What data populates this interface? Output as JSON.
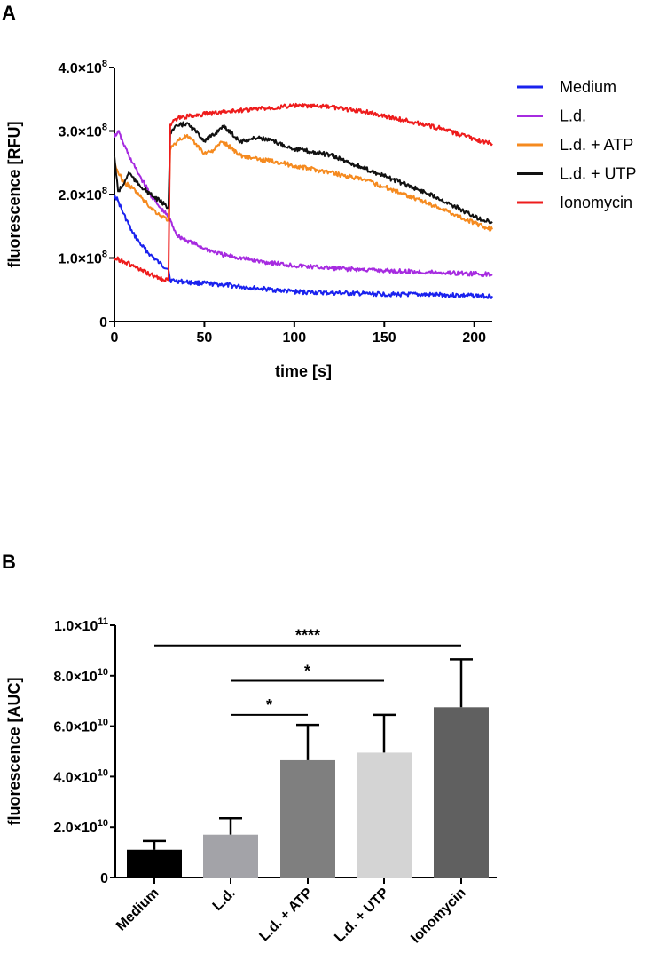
{
  "panels": {
    "a_label": "A",
    "b_label": "B"
  },
  "chart_data": [
    {
      "type": "line",
      "panel": "A",
      "title": "",
      "xlabel": "time [s]",
      "ylabel": "fluorescence [RFU]",
      "xlim": [
        0,
        210
      ],
      "ylim": [
        0,
        400000000
      ],
      "x_ticks": [
        {
          "value": 0,
          "label": "0"
        },
        {
          "value": 50,
          "label": "50"
        },
        {
          "value": 100,
          "label": "100"
        },
        {
          "value": 150,
          "label": "150"
        },
        {
          "value": 200,
          "label": "200"
        }
      ],
      "y_ticks": [
        {
          "value": 0,
          "base": "0",
          "exp": ""
        },
        {
          "value": 100000000,
          "base": "1.0×10",
          "exp": "8"
        },
        {
          "value": 200000000,
          "base": "2.0×10",
          "exp": "8"
        },
        {
          "value": 300000000,
          "base": "3.0×10",
          "exp": "8"
        },
        {
          "value": 400000000,
          "base": "4.0×10",
          "exp": "8"
        }
      ],
      "legend_position": "right",
      "series": [
        {
          "name": "Medium",
          "color": "#1a22ee",
          "points": [
            [
              0,
              200000000
            ],
            [
              2,
              190000000
            ],
            [
              5,
              170000000
            ],
            [
              10,
              140000000
            ],
            [
              15,
              120000000
            ],
            [
              20,
              105000000
            ],
            [
              25,
              92000000
            ],
            [
              30,
              82000000
            ],
            [
              31,
              65000000
            ],
            [
              40,
              62000000
            ],
            [
              60,
              58000000
            ],
            [
              80,
              52000000
            ],
            [
              100,
              47000000
            ],
            [
              120,
              45000000
            ],
            [
              150,
              43000000
            ],
            [
              180,
              42000000
            ],
            [
              210,
              40000000
            ]
          ]
        },
        {
          "name": "L.d.",
          "color": "#a62be0",
          "points": [
            [
              0,
              290000000
            ],
            [
              2,
              300000000
            ],
            [
              5,
              280000000
            ],
            [
              10,
              250000000
            ],
            [
              15,
              225000000
            ],
            [
              20,
              200000000
            ],
            [
              25,
              180000000
            ],
            [
              30,
              165000000
            ],
            [
              35,
              135000000
            ],
            [
              40,
              128000000
            ],
            [
              50,
              115000000
            ],
            [
              60,
              105000000
            ],
            [
              80,
              95000000
            ],
            [
              100,
              88000000
            ],
            [
              120,
              84000000
            ],
            [
              150,
              80000000
            ],
            [
              180,
              77000000
            ],
            [
              210,
              74000000
            ]
          ]
        },
        {
          "name": "L.d. + ATP",
          "color": "#f58a1f",
          "points": [
            [
              0,
              250000000
            ],
            [
              2,
              235000000
            ],
            [
              5,
              220000000
            ],
            [
              10,
              210000000
            ],
            [
              15,
              195000000
            ],
            [
              20,
              180000000
            ],
            [
              25,
              168000000
            ],
            [
              30,
              160000000
            ],
            [
              31,
              270000000
            ],
            [
              35,
              285000000
            ],
            [
              40,
              292000000
            ],
            [
              45,
              280000000
            ],
            [
              50,
              265000000
            ],
            [
              55,
              270000000
            ],
            [
              60,
              283000000
            ],
            [
              65,
              273000000
            ],
            [
              70,
              262000000
            ],
            [
              80,
              255000000
            ],
            [
              90,
              252000000
            ],
            [
              100,
              245000000
            ],
            [
              120,
              235000000
            ],
            [
              140,
              222000000
            ],
            [
              160,
              202000000
            ],
            [
              180,
              180000000
            ],
            [
              200,
              155000000
            ],
            [
              210,
              145000000
            ]
          ]
        },
        {
          "name": "L.d. + UTP",
          "color": "#111111",
          "points": [
            [
              0,
              260000000
            ],
            [
              2,
              205000000
            ],
            [
              5,
              215000000
            ],
            [
              8,
              235000000
            ],
            [
              12,
              220000000
            ],
            [
              20,
              200000000
            ],
            [
              25,
              190000000
            ],
            [
              30,
              180000000
            ],
            [
              31,
              298000000
            ],
            [
              35,
              308000000
            ],
            [
              40,
              312000000
            ],
            [
              45,
              300000000
            ],
            [
              50,
              285000000
            ],
            [
              55,
              293000000
            ],
            [
              60,
              308000000
            ],
            [
              65,
              297000000
            ],
            [
              70,
              283000000
            ],
            [
              80,
              290000000
            ],
            [
              90,
              282000000
            ],
            [
              100,
              272000000
            ],
            [
              120,
              262000000
            ],
            [
              140,
              240000000
            ],
            [
              160,
              218000000
            ],
            [
              180,
              195000000
            ],
            [
              200,
              165000000
            ],
            [
              210,
              155000000
            ]
          ]
        },
        {
          "name": "Ionomycin",
          "color": "#ee1c1c",
          "points": [
            [
              0,
              100000000
            ],
            [
              5,
              95000000
            ],
            [
              10,
              88000000
            ],
            [
              15,
              80000000
            ],
            [
              20,
              74000000
            ],
            [
              25,
              68000000
            ],
            [
              30,
              65000000
            ],
            [
              31,
              310000000
            ],
            [
              35,
              320000000
            ],
            [
              45,
              325000000
            ],
            [
              60,
              330000000
            ],
            [
              80,
              335000000
            ],
            [
              100,
              340000000
            ],
            [
              120,
              338000000
            ],
            [
              140,
              330000000
            ],
            [
              160,
              318000000
            ],
            [
              180,
              305000000
            ],
            [
              200,
              287000000
            ],
            [
              210,
              280000000
            ]
          ]
        }
      ]
    },
    {
      "type": "bar",
      "panel": "B",
      "title": "",
      "xlabel": "",
      "ylabel": "fluorescence [AUC]",
      "ylim": [
        0,
        100000000000
      ],
      "categories": [
        "Medium",
        "L.d.",
        "L.d. + ATP",
        "L.d. + UTP",
        "Ionomycin"
      ],
      "values": [
        11000000000,
        17000000000,
        46500000000,
        49500000000,
        67500000000
      ],
      "errors": [
        3500000000,
        6500000000,
        14000000000,
        15000000000,
        19000000000
      ],
      "colors": [
        "#000000",
        "#a3a3a8",
        "#7f7f7f",
        "#d4d4d4",
        "#606060"
      ],
      "y_ticks": [
        {
          "value": 0,
          "base": "0",
          "exp": ""
        },
        {
          "value": 20000000000,
          "base": "2.0×10",
          "exp": "10"
        },
        {
          "value": 40000000000,
          "base": "4.0×10",
          "exp": "10"
        },
        {
          "value": 60000000000,
          "base": "6.0×10",
          "exp": "10"
        },
        {
          "value": 80000000000,
          "base": "8.0×10",
          "exp": "10"
        },
        {
          "value": 100000000000,
          "base": "1.0×10",
          "exp": "11"
        }
      ],
      "significance": [
        {
          "from": 0,
          "to": 4,
          "label": "****",
          "level": 92000000000
        },
        {
          "from": 1,
          "to": 3,
          "label": "*",
          "level": 78000000000
        },
        {
          "from": 1,
          "to": 2,
          "label": "*",
          "level": 64500000000
        }
      ]
    }
  ]
}
